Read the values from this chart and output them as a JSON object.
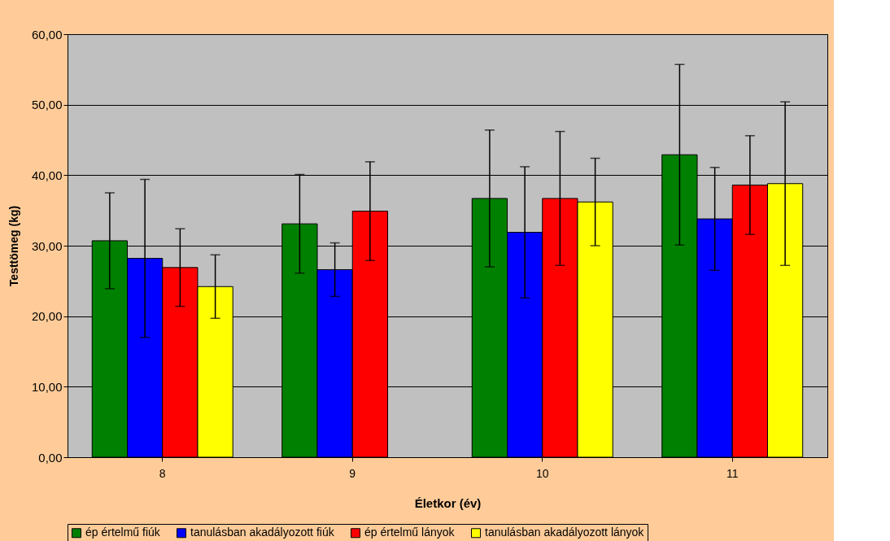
{
  "chart_data": {
    "type": "bar",
    "xlabel": "Életkor (év)",
    "ylabel": "Testtömeg (kg)",
    "categories": [
      "8",
      "9",
      "10",
      "11"
    ],
    "series": [
      {
        "name": "ép értelmű fiúk",
        "color": "#008000",
        "values": [
          30.7,
          33.1,
          36.7,
          42.9
        ],
        "errors": [
          6.8,
          7.0,
          9.7,
          12.8
        ]
      },
      {
        "name": "tanulásban akadályozott fiúk",
        "color": "#0000ff",
        "values": [
          28.2,
          26.6,
          31.9,
          33.8
        ],
        "errors": [
          11.2,
          3.8,
          9.3,
          7.3
        ]
      },
      {
        "name": "ép értelmű lányok",
        "color": "#ff0000",
        "values": [
          26.9,
          34.9,
          36.7,
          38.6
        ],
        "errors": [
          5.5,
          7.0,
          9.5,
          7.0
        ]
      },
      {
        "name": "tanulásban akadályozott lányok",
        "color": "#ffff00",
        "values": [
          24.2,
          null,
          36.2,
          38.8
        ],
        "errors": [
          4.5,
          null,
          6.2,
          11.6
        ]
      }
    ],
    "ylim": [
      0,
      60
    ],
    "yticks": [
      {
        "value": 0,
        "label": "0,00"
      },
      {
        "value": 10,
        "label": "10,00"
      },
      {
        "value": 20,
        "label": "20,00"
      },
      {
        "value": 30,
        "label": "30,00"
      },
      {
        "value": 40,
        "label": "40,00"
      },
      {
        "value": 50,
        "label": "50,00"
      },
      {
        "value": 60,
        "label": "60,00"
      }
    ],
    "grid": "y",
    "legend": "bottom"
  }
}
